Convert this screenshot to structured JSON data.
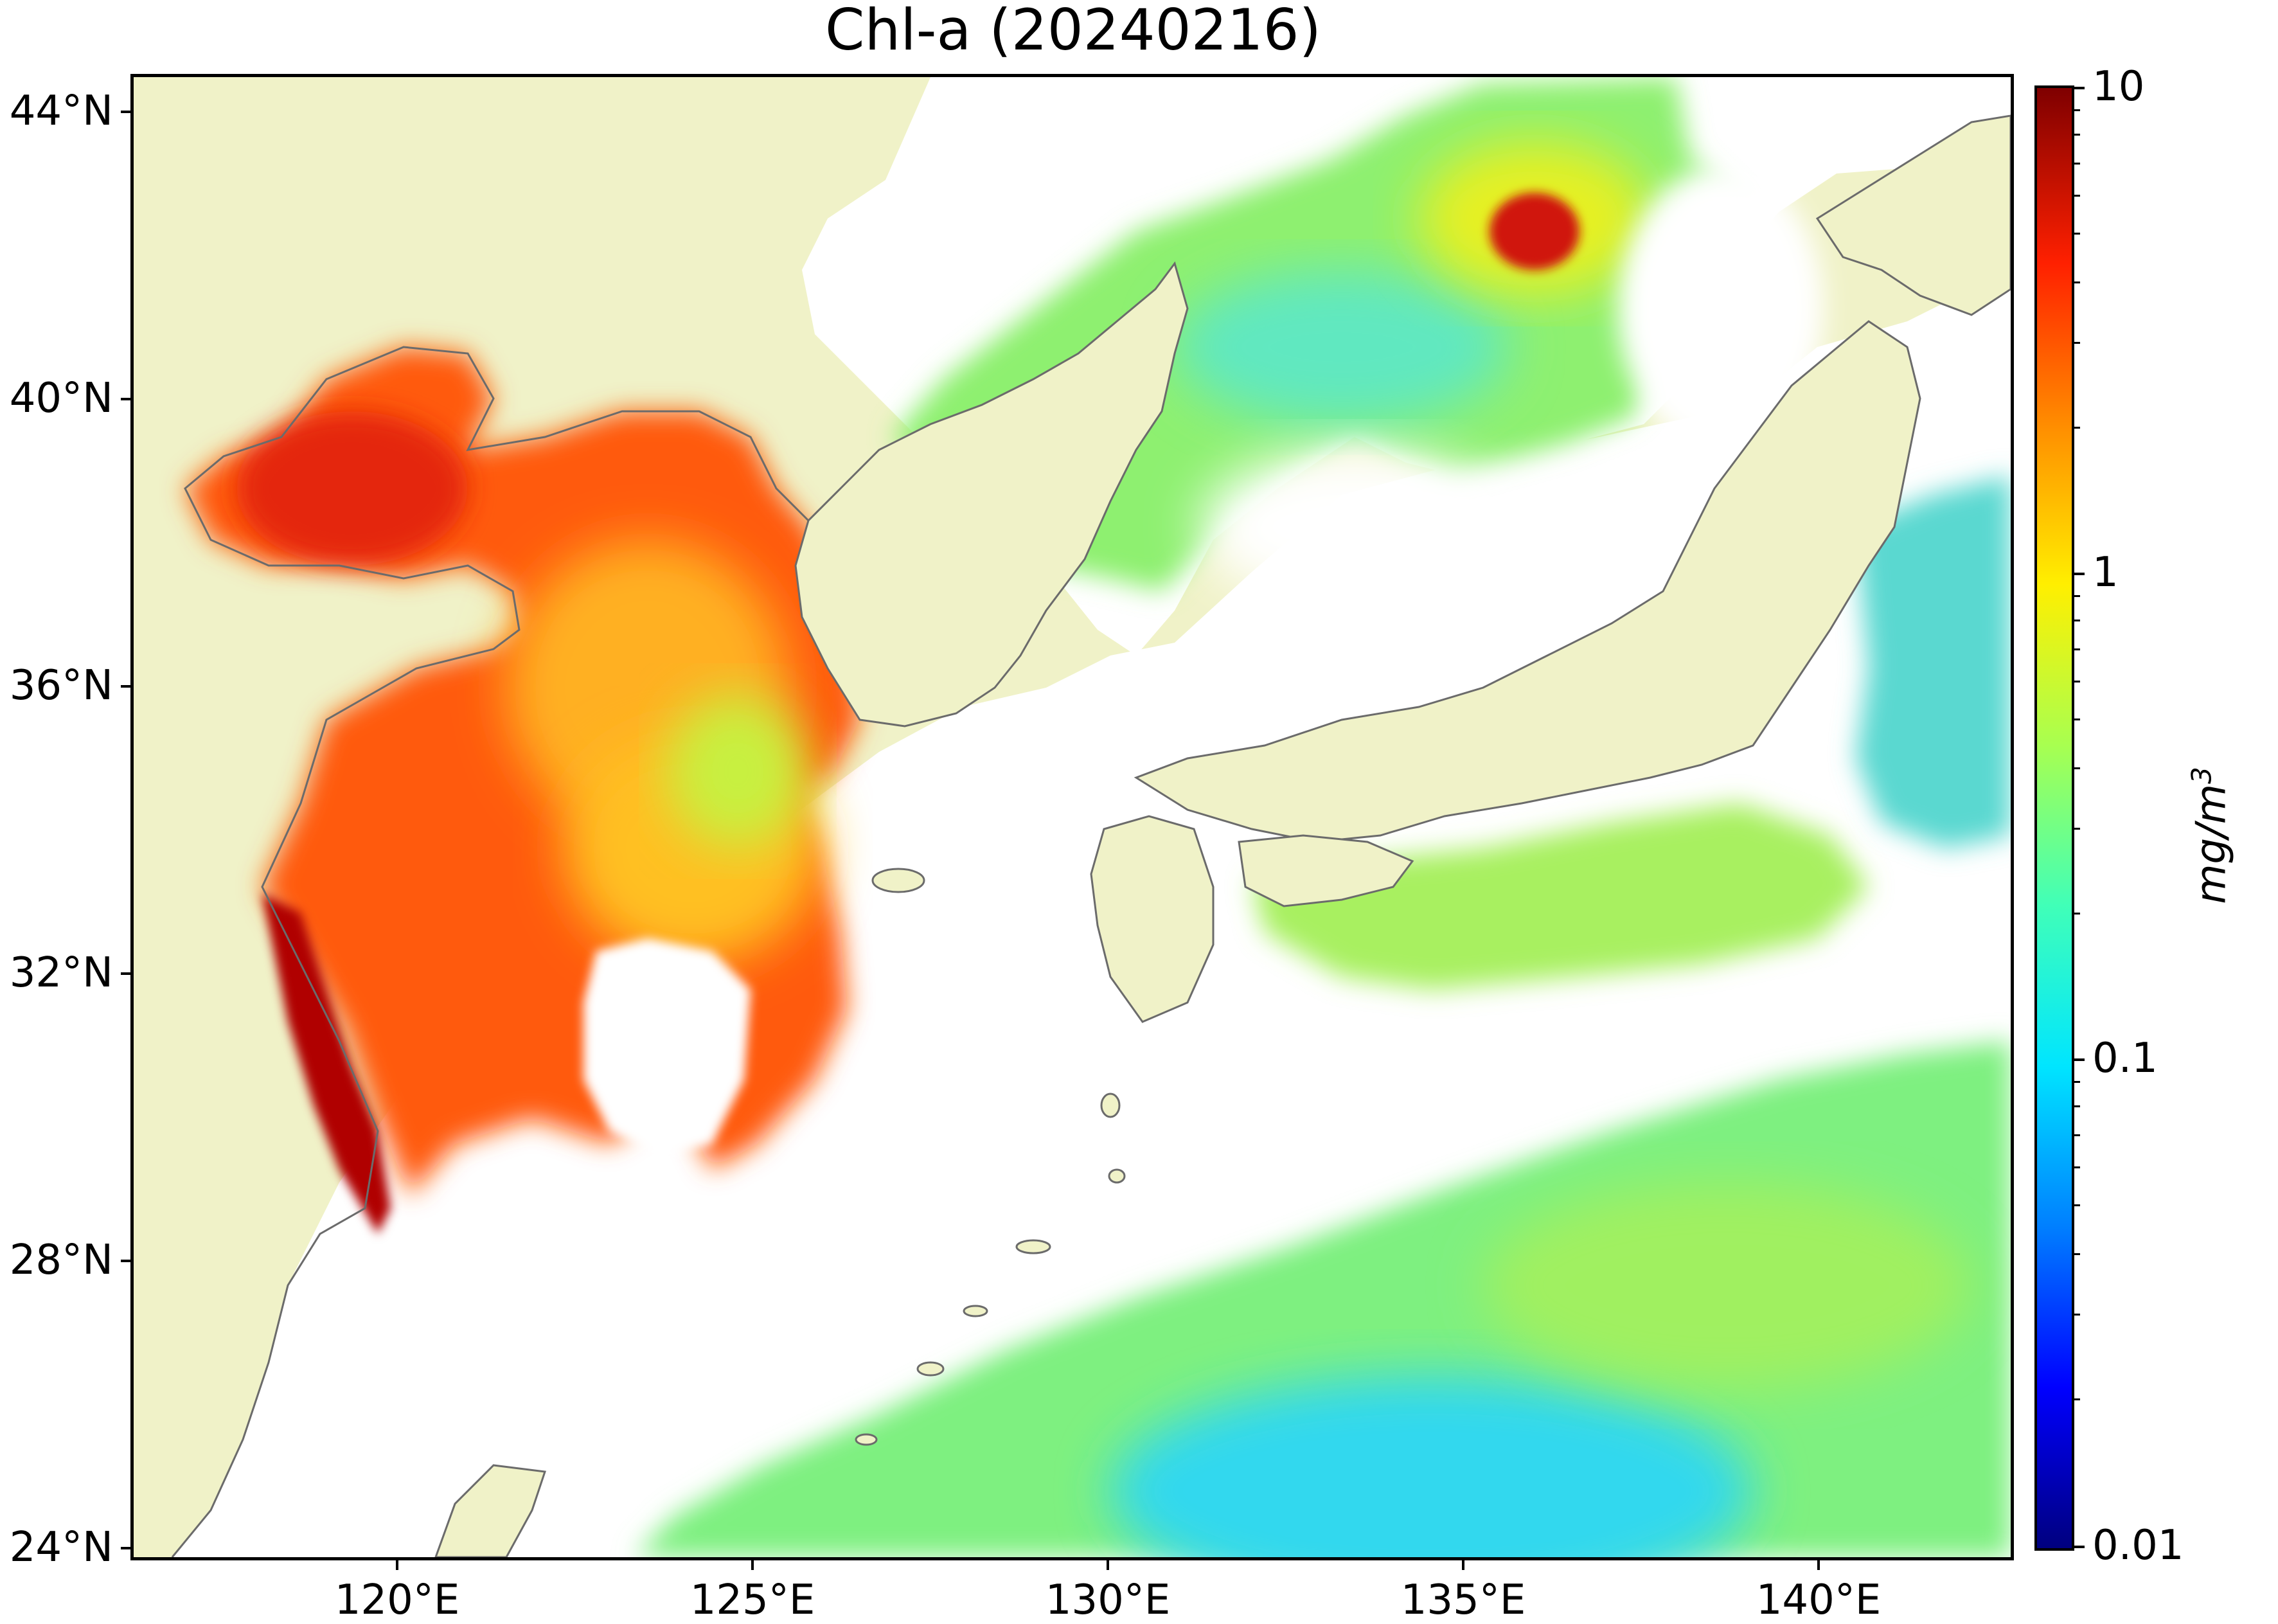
{
  "title": "Chl-a (20240216)",
  "x_ticks": [
    "120°E",
    "125°E",
    "130°E",
    "135°E",
    "140°E"
  ],
  "y_ticks": [
    "44°N",
    "40°N",
    "36°N",
    "32°N",
    "28°N",
    "24°N"
  ],
  "colorbar": {
    "label_prefix": "mg/m",
    "label_exponent": "3",
    "ticks": [
      "10",
      "1",
      "0.1",
      "0.01"
    ],
    "scale": "log",
    "colormap": "jet",
    "range": [
      0.01,
      10
    ]
  },
  "colors": {
    "land": "#f0f2c8",
    "coastline": "#6b6b6b",
    "no_data": "#ffffff"
  },
  "chart_data": {
    "type": "heatmap",
    "title": "Chl-a (20240216)",
    "x_range_deg_e": [
      116.5,
      143.0
    ],
    "y_range_deg_n": [
      23.9,
      44.5
    ],
    "value_unit": "mg/m3",
    "value_range": [
      0.01,
      10
    ],
    "value_scale": "log"
  }
}
